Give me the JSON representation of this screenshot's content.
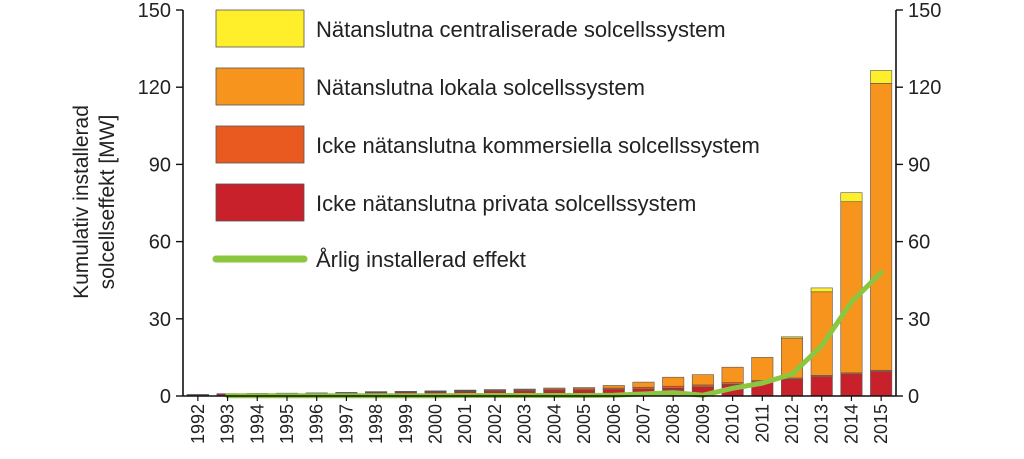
{
  "chart_data": {
    "type": "bar",
    "stacked": true,
    "ylabel": "Kumulativ installerad solcellseffekt [MW]",
    "ylabel_lines": [
      "Kumulativ installerad",
      "solcellseffekt [MW]"
    ],
    "ylim": [
      0,
      150
    ],
    "yticks": [
      0,
      30,
      60,
      90,
      120,
      150
    ],
    "secondary_yticks": [
      0,
      30,
      60,
      90,
      120,
      150
    ],
    "grid": false,
    "legend_position": "top-left",
    "categories": [
      "1992",
      "1993",
      "1994",
      "1995",
      "1996",
      "1997",
      "1998",
      "1999",
      "2000",
      "2001",
      "2002",
      "2003",
      "2004",
      "2005",
      "2006",
      "2007",
      "2008",
      "2009",
      "2010",
      "2011",
      "2012",
      "2013",
      "2014",
      "2015"
    ],
    "series": [
      {
        "name": "Icke nätanslutna privata solcellssystem",
        "color": "#c8212b",
        "values": [
          0.5,
          0.8,
          0.9,
          1.0,
          1.1,
          1.2,
          1.4,
          1.5,
          1.6,
          1.8,
          1.9,
          2.0,
          2.2,
          2.3,
          2.5,
          2.7,
          3.0,
          3.5,
          4.5,
          5.5,
          6.5,
          7.5,
          8.5,
          9.5
        ]
      },
      {
        "name": "Icke nätanslutna kommersiella solcellssystem",
        "color": "#e85a1f",
        "values": [
          0.1,
          0.1,
          0.1,
          0.1,
          0.1,
          0.2,
          0.2,
          0.2,
          0.2,
          0.3,
          0.4,
          0.4,
          0.5,
          0.5,
          0.6,
          0.7,
          0.8,
          0.8,
          0.7,
          0.5,
          0.5,
          0.5,
          0.5,
          0.5
        ]
      },
      {
        "name": "Nätanslutna lokala solcellssystem",
        "color": "#f7941d",
        "values": [
          0,
          0,
          0,
          0,
          0,
          0,
          0.1,
          0.1,
          0.2,
          0.2,
          0.2,
          0.3,
          0.4,
          0.5,
          1.0,
          2.0,
          3.5,
          4.0,
          6.0,
          9.0,
          15.5,
          32.5,
          66.5,
          111.5
        ]
      },
      {
        "name": "Nätanslutna centraliserade solcellssystem",
        "color": "#ffee2a",
        "values": [
          0,
          0,
          0,
          0,
          0,
          0,
          0,
          0,
          0,
          0,
          0,
          0,
          0,
          0,
          0,
          0,
          0,
          0,
          0,
          0,
          0.5,
          1.5,
          3.5,
          5.0
        ]
      }
    ],
    "line": {
      "name": "Årlig installerad effekt",
      "color": "#8cc63f",
      "start_index": 1,
      "values": [
        null,
        0.1,
        0.1,
        0.1,
        0.1,
        0.1,
        0.1,
        0.1,
        0.1,
        0.2,
        0.2,
        0.2,
        0.2,
        0.2,
        0.3,
        0.8,
        1.3,
        0.3,
        3.0,
        5.0,
        8.5,
        19.5,
        36.5,
        48.0
      ]
    },
    "legend_order": [
      "Nätanslutna centraliserade solcellssystem",
      "Nätanslutna lokala solcellssystem",
      "Icke nätanslutna kommersiella solcellssystem",
      "Icke nätanslutna privata solcellssystem",
      "Årlig installerad effekt"
    ]
  }
}
